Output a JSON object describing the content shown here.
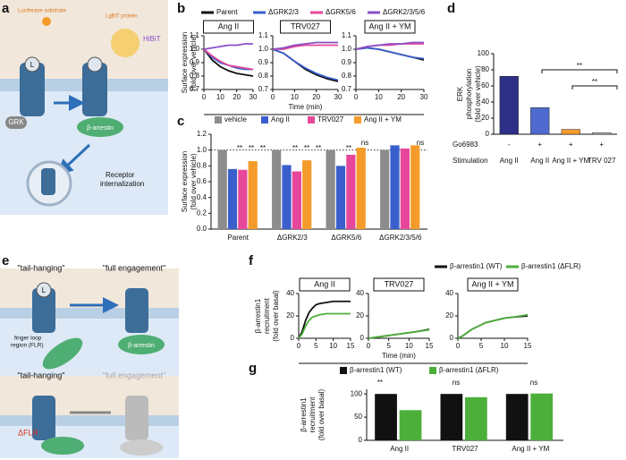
{
  "panel_letters": [
    "a",
    "b",
    "c",
    "d",
    "e",
    "f",
    "g"
  ],
  "diagram_a": {
    "substrate": "Luciferase substrate",
    "lgbit": "LgBiT protein",
    "hibit": "HiBiT",
    "grk": "GRK",
    "ligand": "L",
    "arrestin": "β-arrestin",
    "internalization": [
      "Receptor",
      "internalization"
    ]
  },
  "diagram_e": {
    "tail_hanging_1": "\"tail-hanging\"",
    "full_engagement_1": "\"full engagement\"",
    "flr": [
      "finger loop",
      "region (FLR)"
    ],
    "arrestin": "β-arrestin",
    "tail_hanging_2": "\"tail-hanging\"",
    "full_engagement_2": "\"full engagement\"",
    "dflr": "ΔFLR",
    "ligand": "L"
  },
  "chart_data": [
    {
      "type": "line",
      "ylabel": [
        "Surface expression",
        "(fold over vehicle)"
      ],
      "xlabel": "Time (min)",
      "series": [
        {
          "name": "Parent",
          "color": "#111111"
        },
        {
          "name": "ΔGRK2/3",
          "color": "#3a5fcd"
        },
        {
          "name": "ΔGRK5/6",
          "color": "#e7479a"
        },
        {
          "name": "ΔGRK2/3/5/6",
          "color": "#8a4fc8"
        }
      ],
      "x": [
        0,
        5,
        10,
        15,
        20,
        25,
        30
      ],
      "xlim": [
        0,
        30
      ],
      "xticks": [
        0,
        10,
        20,
        30
      ],
      "ylim": [
        0.7,
        1.1
      ],
      "yticks": [
        0.7,
        0.8,
        0.9,
        {
          "value": 1,
          "label": "1.0"
        },
        1.1
      ],
      "subplots": [
        {
          "title": "Ang II",
          "values": [
            [
              1.0,
              0.92,
              0.87,
              0.84,
              0.82,
              0.81,
              0.8
            ],
            [
              1.0,
              0.94,
              0.9,
              0.88,
              0.86,
              0.85,
              0.85
            ],
            [
              1.0,
              0.95,
              0.91,
              0.88,
              0.87,
              0.86,
              0.85
            ],
            [
              1.0,
              1.01,
              1.02,
              1.03,
              1.03,
              1.04,
              1.04
            ]
          ]
        },
        {
          "title": "TRV027",
          "values": [
            [
              1.0,
              0.97,
              0.91,
              0.85,
              0.81,
              0.78,
              0.76
            ],
            [
              1.0,
              0.97,
              0.91,
              0.86,
              0.82,
              0.79,
              0.77
            ],
            [
              1.0,
              1.0,
              1.02,
              1.03,
              1.03,
              1.03,
              1.03
            ],
            [
              1.0,
              1.01,
              1.03,
              1.04,
              1.05,
              1.05,
              1.05
            ]
          ]
        },
        {
          "title": "Ang II + YM",
          "values": [
            [
              1.0,
              1.01,
              1.0,
              0.98,
              0.96,
              0.94,
              0.92
            ],
            [
              1.0,
              1.01,
              1.0,
              0.98,
              0.96,
              0.94,
              0.93
            ],
            [
              1.0,
              1.02,
              1.03,
              1.03,
              1.04,
              1.04,
              1.04
            ],
            [
              1.0,
              1.02,
              1.03,
              1.04,
              1.04,
              1.05,
              1.05
            ]
          ]
        }
      ]
    },
    {
      "type": "grouped_bar",
      "ylabel": [
        "Surface expression",
        "(fold over vehicle)"
      ],
      "categories": [
        "Parent",
        "ΔGRK2/3",
        "ΔGRK5/6",
        "ΔGRK2/3/5/6"
      ],
      "series": [
        {
          "name": "vehicle",
          "color": "#8c8c8c",
          "values": [
            1.0,
            1.0,
            1.0,
            1.0
          ]
        },
        {
          "name": "Ang II",
          "color": "#3a5fcd",
          "values": [
            0.76,
            0.81,
            0.8,
            1.06
          ]
        },
        {
          "name": "TRV027",
          "color": "#e7479a",
          "values": [
            0.75,
            0.73,
            0.94,
            1.02
          ]
        },
        {
          "name": "Ang II + YM",
          "color": "#f59b2b",
          "values": [
            0.86,
            0.87,
            1.03,
            1.06
          ]
        }
      ],
      "ylim": [
        0,
        1.2
      ],
      "yticks": [
        {
          "value": 0,
          "label": "0.0"
        },
        0.2,
        0.4,
        0.6,
        0.8,
        {
          "value": 1,
          "label": "1.0"
        },
        1.2
      ],
      "reference_line": 1,
      "annotations": [
        "**",
        "**",
        "**",
        "**",
        "**",
        "**",
        "**",
        "ns",
        "ns"
      ]
    },
    {
      "type": "bar",
      "ylabel": [
        "ERK",
        "phosphorylation",
        "(fold over vehicle)"
      ],
      "values": [
        72,
        33,
        6,
        2
      ],
      "colors": [
        "#2e2f86",
        "#4f6bd0",
        "#f59b2b",
        "#bdbdbd"
      ],
      "ylim": [
        0,
        100
      ],
      "yticks": [
        0,
        20,
        40,
        60,
        80,
        100
      ],
      "rows": [
        {
          "name": "Go6983",
          "labels": [
            "-",
            "+",
            "+",
            "+"
          ]
        },
        {
          "name": "Stimulation",
          "labels": [
            "Ang II",
            "Ang II",
            "Ang II + YM",
            "TRV 027"
          ]
        }
      ],
      "annotations": [
        "**",
        "**"
      ]
    },
    {
      "type": "line",
      "ylabel": [
        "β-arrestin1",
        "recruitment",
        "(fold over basal)"
      ],
      "xlabel": "Time (min)",
      "series": [
        {
          "name": "β-arrestin1 (WT)",
          "color": "#111111"
        },
        {
          "name": "β-arrestin1 (ΔFLR)",
          "color": "#4caf3a"
        }
      ],
      "x": [
        0,
        1,
        2,
        3,
        4,
        5,
        6,
        8,
        10,
        12,
        15
      ],
      "xlim": [
        0,
        15
      ],
      "xticks": [
        0,
        5,
        10,
        15
      ],
      "ylim": [
        0,
        40
      ],
      "yticks": [
        0,
        20,
        40
      ],
      "subplots": [
        {
          "title": "Ang II",
          "values": [
            [
              0,
              6,
              16,
              23,
              27,
              30,
              31,
              32,
              33,
              33,
              33
            ],
            [
              0,
              4,
              11,
              16,
              19,
              20,
              21,
              22,
              22,
              22,
              22
            ]
          ]
        },
        {
          "title": "TRV027",
          "values": [
            [
              0,
              0.5,
              1,
              1.5,
              2,
              2.5,
              3,
              4,
              5,
              6,
              8
            ],
            [
              0,
              0.5,
              1,
              1.5,
              2,
              2.5,
              3,
              4,
              5,
              6,
              7.5
            ]
          ]
        },
        {
          "title": "Ang II + YM",
          "values": [
            [
              0,
              2,
              5,
              8,
              10,
              12,
              14,
              16,
              18,
              19,
              20
            ],
            [
              0,
              2,
              5,
              8,
              10,
              12,
              14,
              16,
              18,
              19,
              21
            ]
          ]
        }
      ]
    },
    {
      "type": "grouped_bar",
      "ylabel": [
        "β-arrestin1",
        "recruitment",
        "(fold over basal)"
      ],
      "categories": [
        "Ang II",
        "TRV027",
        "Ang II + YM"
      ],
      "series": [
        {
          "name": "β-arrestin1 (WT)",
          "color": "#111111",
          "values": [
            100,
            100,
            100
          ]
        },
        {
          "name": "β-arrestin1 (ΔFLR)",
          "color": "#4caf3a",
          "values": [
            65,
            93,
            101
          ]
        }
      ],
      "ylim": [
        0,
        110
      ],
      "yticks": [
        0,
        50,
        100
      ],
      "annotations": [
        "**",
        "ns",
        "ns"
      ]
    }
  ]
}
